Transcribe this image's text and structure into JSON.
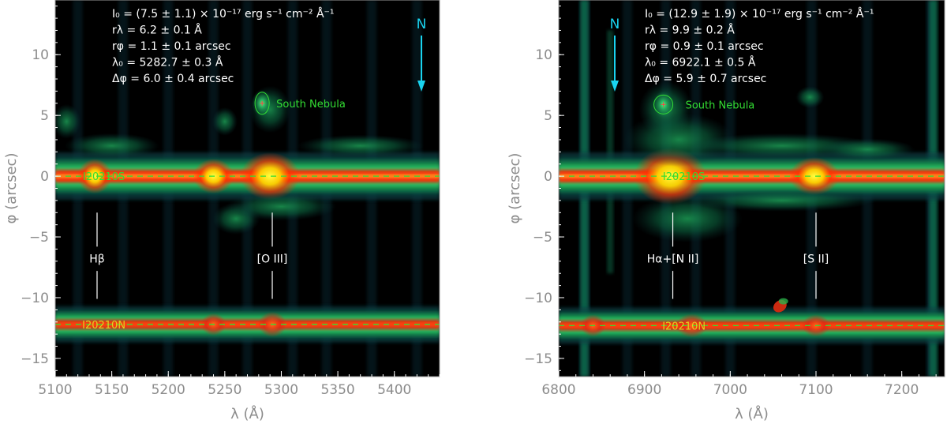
{
  "chart_data": [
    {
      "type": "heatmap",
      "panel": "left",
      "xlabel": "λ (Å)",
      "ylabel": "φ (arcsec)",
      "xlim": [
        5100,
        5440
      ],
      "ylim": [
        -16.5,
        14.5
      ],
      "xticks": [
        "5100",
        "5150",
        "5200",
        "5250",
        "5300",
        "5350",
        "5400"
      ],
      "yticks": [
        "10",
        "5",
        "0",
        "−5",
        "−10",
        "−15"
      ],
      "annotations": [
        "I₀ = (7.5 ± 1.1) × 10⁻¹⁷ erg s⁻¹ cm⁻² Å⁻¹",
        "rλ = 6.2 ± 0.1 Å",
        "rφ = 1.1 ± 0.1 arcsec",
        "λ₀ = 5282.7 ± 0.3 Å",
        "Δφ = 6.0 ± 0.4 arcsec"
      ],
      "north_label": "N",
      "north_direction": "down",
      "nebula_label": "South Nebula",
      "nebula": {
        "x": 5283,
        "y": 6.0
      },
      "galaxies": [
        {
          "label": "I20210S",
          "y": 0.0
        },
        {
          "label": "I20210N",
          "y": -12.2
        }
      ],
      "emission_lines": [
        {
          "label": "Hβ",
          "x": 5137
        },
        {
          "label": "[O III]",
          "x": 5292
        }
      ]
    },
    {
      "type": "heatmap",
      "panel": "right",
      "xlabel": "λ (Å)",
      "ylabel": "φ (arcsec)",
      "xlim": [
        6800,
        7250
      ],
      "ylim": [
        -16.5,
        14.5
      ],
      "xticks": [
        "6800",
        "6900",
        "7000",
        "7100",
        "7200"
      ],
      "yticks": [
        "10",
        "5",
        "0",
        "−5",
        "−10",
        "−15"
      ],
      "annotations": [
        "I₀ = (12.9 ± 1.9) × 10⁻¹⁷ erg s⁻¹ cm⁻² Å⁻¹",
        "rλ = 9.9 ± 0.2 Å",
        "rφ = 0.9 ± 0.1 arcsec",
        "λ₀ = 6922.1 ± 0.5 Å",
        "Δφ = 5.9 ± 0.7 arcsec"
      ],
      "north_label": "N",
      "north_direction": "down",
      "nebula_label": "South Nebula",
      "nebula": {
        "x": 6922,
        "y": 5.9
      },
      "galaxies": [
        {
          "label": "I20210S",
          "y": 0.0
        },
        {
          "label": "I20210N",
          "y": -12.3
        }
      ],
      "emission_lines": [
        {
          "label": "Hα+[N II]",
          "x": 6933
        },
        {
          "label": "[S II]",
          "x": 7100
        }
      ]
    }
  ]
}
